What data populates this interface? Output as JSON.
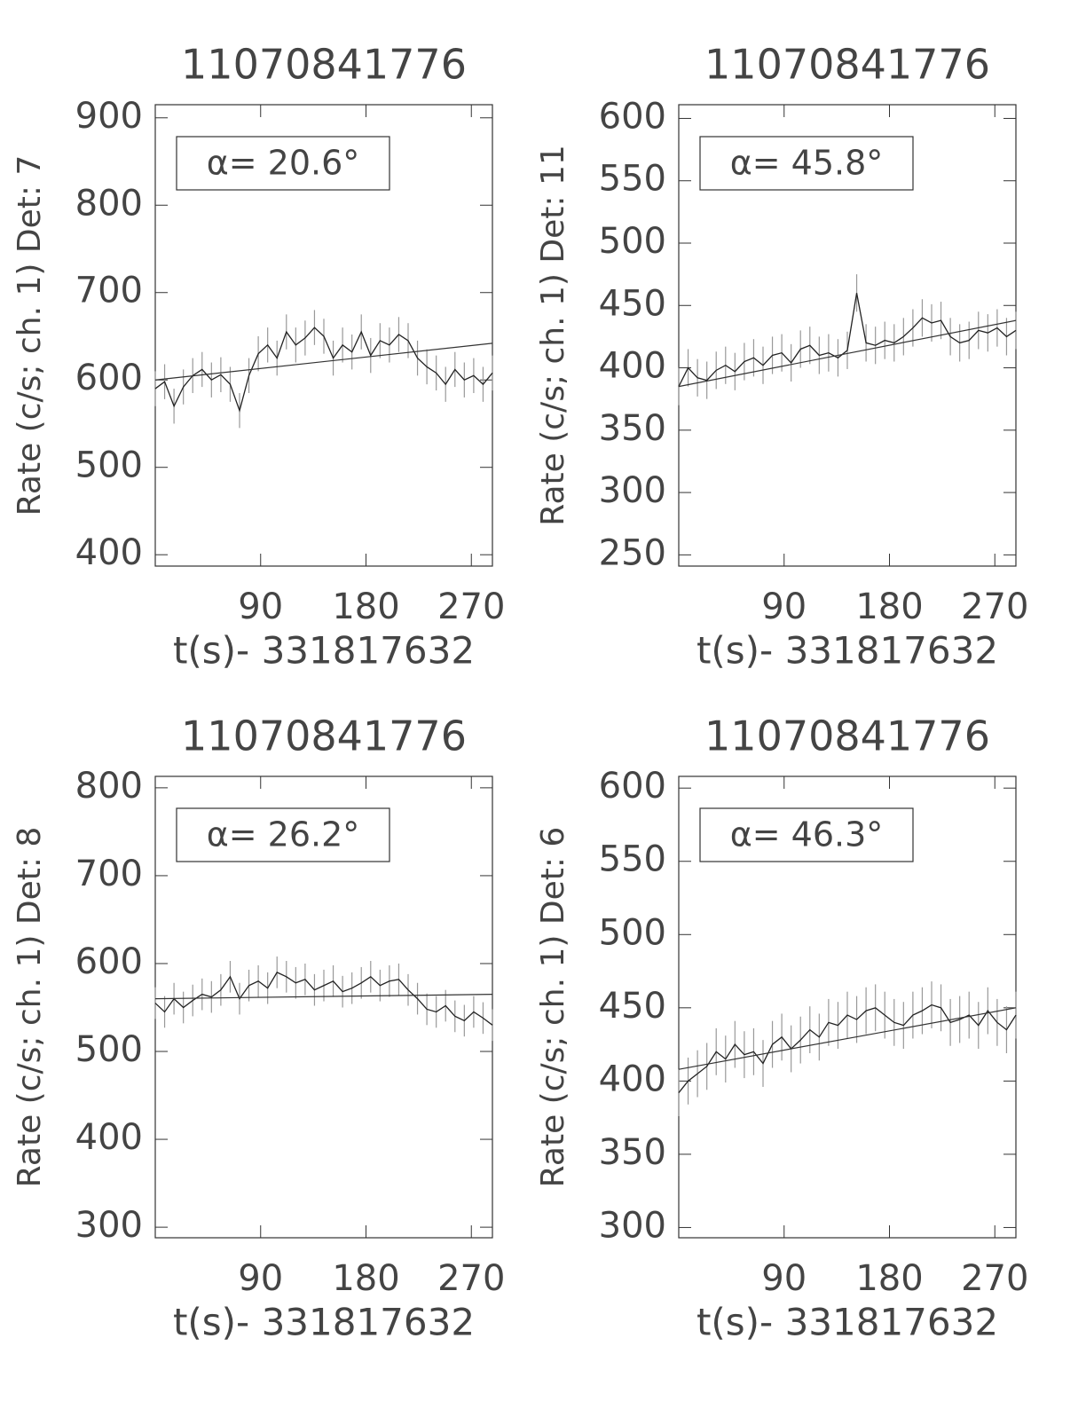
{
  "chart_data": [
    {
      "type": "line",
      "title": "11070841776",
      "xlabel": "t(s)- 331817632",
      "ylabel": "Rate (c/s; ch. 1) Det: 7",
      "annotation": "α= 20.6°",
      "x": [
        0,
        8,
        16,
        24,
        32,
        40,
        48,
        56,
        64,
        72,
        80,
        88,
        96,
        104,
        112,
        120,
        128,
        136,
        144,
        152,
        160,
        168,
        176,
        184,
        192,
        200,
        208,
        216,
        224,
        232,
        240,
        248,
        256,
        264,
        272,
        280,
        288
      ],
      "values": [
        590,
        598,
        570,
        592,
        605,
        612,
        600,
        606,
        595,
        565,
        605,
        630,
        640,
        625,
        655,
        640,
        648,
        660,
        650,
        625,
        640,
        632,
        655,
        628,
        645,
        640,
        652,
        645,
        625,
        615,
        608,
        595,
        612,
        600,
        605,
        595,
        608
      ],
      "error": 20,
      "fit_x": [
        0,
        288
      ],
      "fit_y": [
        600,
        642
      ],
      "xlim": [
        0,
        288
      ],
      "ylim": [
        387,
        915
      ],
      "xticks": [
        90,
        180,
        270
      ],
      "yticks": [
        400,
        500,
        600,
        700,
        800,
        900
      ]
    },
    {
      "type": "line",
      "title": "11070841776",
      "xlabel": "t(s)- 331817632",
      "ylabel": "Rate (c/s; ch. 1) Det: 11",
      "annotation": "α= 45.8°",
      "x": [
        0,
        8,
        16,
        24,
        32,
        40,
        48,
        56,
        64,
        72,
        80,
        88,
        96,
        104,
        112,
        120,
        128,
        136,
        144,
        152,
        160,
        168,
        176,
        184,
        192,
        200,
        208,
        216,
        224,
        232,
        240,
        248,
        256,
        264,
        272,
        280,
        288
      ],
      "values": [
        385,
        400,
        392,
        390,
        398,
        402,
        397,
        405,
        408,
        402,
        410,
        412,
        404,
        415,
        418,
        410,
        412,
        408,
        414,
        460,
        420,
        418,
        422,
        420,
        425,
        432,
        440,
        436,
        438,
        425,
        420,
        422,
        430,
        428,
        432,
        425,
        430
      ],
      "error": 15,
      "fit_x": [
        0,
        288
      ],
      "fit_y": [
        385,
        438
      ],
      "xlim": [
        0,
        288
      ],
      "ylim": [
        241,
        611
      ],
      "xticks": [
        90,
        180,
        270
      ],
      "yticks": [
        250,
        300,
        350,
        400,
        450,
        500,
        550,
        600
      ]
    },
    {
      "type": "line",
      "title": "11070841776",
      "xlabel": "t(s)- 331817632",
      "ylabel": "Rate (c/s; ch. 1) Det: 8",
      "annotation": "α= 26.2°",
      "x": [
        0,
        8,
        16,
        24,
        32,
        40,
        48,
        56,
        64,
        72,
        80,
        88,
        96,
        104,
        112,
        120,
        128,
        136,
        144,
        152,
        160,
        168,
        176,
        184,
        192,
        200,
        208,
        216,
        224,
        232,
        240,
        248,
        256,
        264,
        272,
        280,
        288
      ],
      "values": [
        555,
        545,
        560,
        550,
        558,
        565,
        562,
        570,
        585,
        560,
        575,
        580,
        572,
        590,
        585,
        578,
        582,
        570,
        575,
        580,
        568,
        572,
        578,
        585,
        575,
        580,
        582,
        570,
        560,
        548,
        545,
        552,
        540,
        535,
        545,
        538,
        530
      ],
      "error": 18,
      "fit_x": [
        0,
        288
      ],
      "fit_y": [
        560,
        565
      ],
      "xlim": [
        0,
        288
      ],
      "ylim": [
        288,
        813
      ],
      "xticks": [
        90,
        180,
        270
      ],
      "yticks": [
        300,
        400,
        500,
        600,
        700,
        800
      ]
    },
    {
      "type": "line",
      "title": "11070841776",
      "xlabel": "t(s)- 331817632",
      "ylabel": "Rate (c/s; ch. 1) Det: 6",
      "annotation": "α= 46.3°",
      "x": [
        0,
        8,
        16,
        24,
        32,
        40,
        48,
        56,
        64,
        72,
        80,
        88,
        96,
        104,
        112,
        120,
        128,
        136,
        144,
        152,
        160,
        168,
        176,
        184,
        192,
        200,
        208,
        216,
        224,
        232,
        240,
        248,
        256,
        264,
        272,
        280,
        288
      ],
      "values": [
        392,
        400,
        405,
        410,
        420,
        415,
        425,
        418,
        420,
        412,
        425,
        430,
        422,
        428,
        435,
        430,
        440,
        438,
        445,
        442,
        448,
        450,
        445,
        440,
        438,
        445,
        448,
        452,
        450,
        440,
        442,
        445,
        438,
        448,
        440,
        435,
        445
      ],
      "error": 16,
      "fit_x": [
        0,
        288
      ],
      "fit_y": [
        408,
        450
      ],
      "xlim": [
        0,
        288
      ],
      "ylim": [
        293,
        608
      ],
      "xticks": [
        90,
        180,
        270
      ],
      "yticks": [
        300,
        350,
        400,
        450,
        500,
        550,
        600
      ]
    }
  ]
}
